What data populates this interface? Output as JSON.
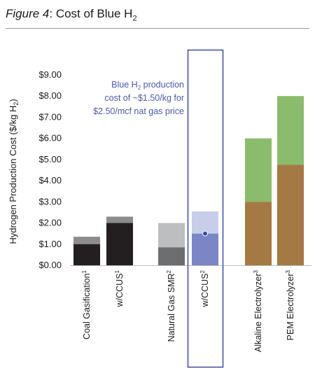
{
  "figure": {
    "label": "Figure 4",
    "title_rest": ": Cost of Blue H",
    "title_sub": "2"
  },
  "chart_data": {
    "type": "bar",
    "stacked": true,
    "ylabel_main": "Hydrogen Production Cost ($/kg H",
    "ylabel_sub": "2",
    "ylabel_end": ")",
    "ylim": [
      0,
      9
    ],
    "yticks": [
      "$0.00",
      "$1.00",
      "$2.00",
      "$3.00",
      "$4.00",
      "$5.00",
      "$6.00",
      "$7.00",
      "$8.00",
      "$9.00"
    ],
    "grid": false,
    "categories": [
      {
        "label": "Coal Gasification",
        "sup": "1",
        "low": 1.0,
        "high": 1.35,
        "low_color": "#231f20",
        "high_color": "#8c8c8c"
      },
      {
        "label": "w/CCUS",
        "sup": "1",
        "low": 2.0,
        "high": 2.3,
        "low_color": "#231f20",
        "high_color": "#8c8c8c"
      },
      {
        "label": "Natural Gas SMR",
        "sup": "2",
        "low": 0.85,
        "high": 2.0,
        "low_color": "#6d6e70",
        "high_color": "#bcbec0"
      },
      {
        "label": "w/CCUS",
        "sup": "2",
        "low": 1.5,
        "high": 2.55,
        "low_color": "#7b86c6",
        "high_color": "#c8cdea"
      },
      {
        "label": "Alkaline Electrolyzer",
        "sup": "3",
        "low": 3.0,
        "high": 6.0,
        "low_color": "#a57944",
        "high_color": "#8bbb6d"
      },
      {
        "label": "PEM Electrolyzer",
        "sup": "3",
        "low": 4.75,
        "high": 8.0,
        "low_color": "#a57944",
        "high_color": "#8bbb6d"
      }
    ],
    "highlight": {
      "category_index": 3,
      "point_value": 1.5,
      "box_color": "#3b4da0",
      "annotation_lines": [
        "Blue H",
        "cost of ~$1.50/kg for",
        "$2.50/mcf nat gas price"
      ],
      "annotation_first_rest": " production",
      "annotation_first_sub": "2",
      "annotation_color": "#4d5aa8"
    }
  }
}
